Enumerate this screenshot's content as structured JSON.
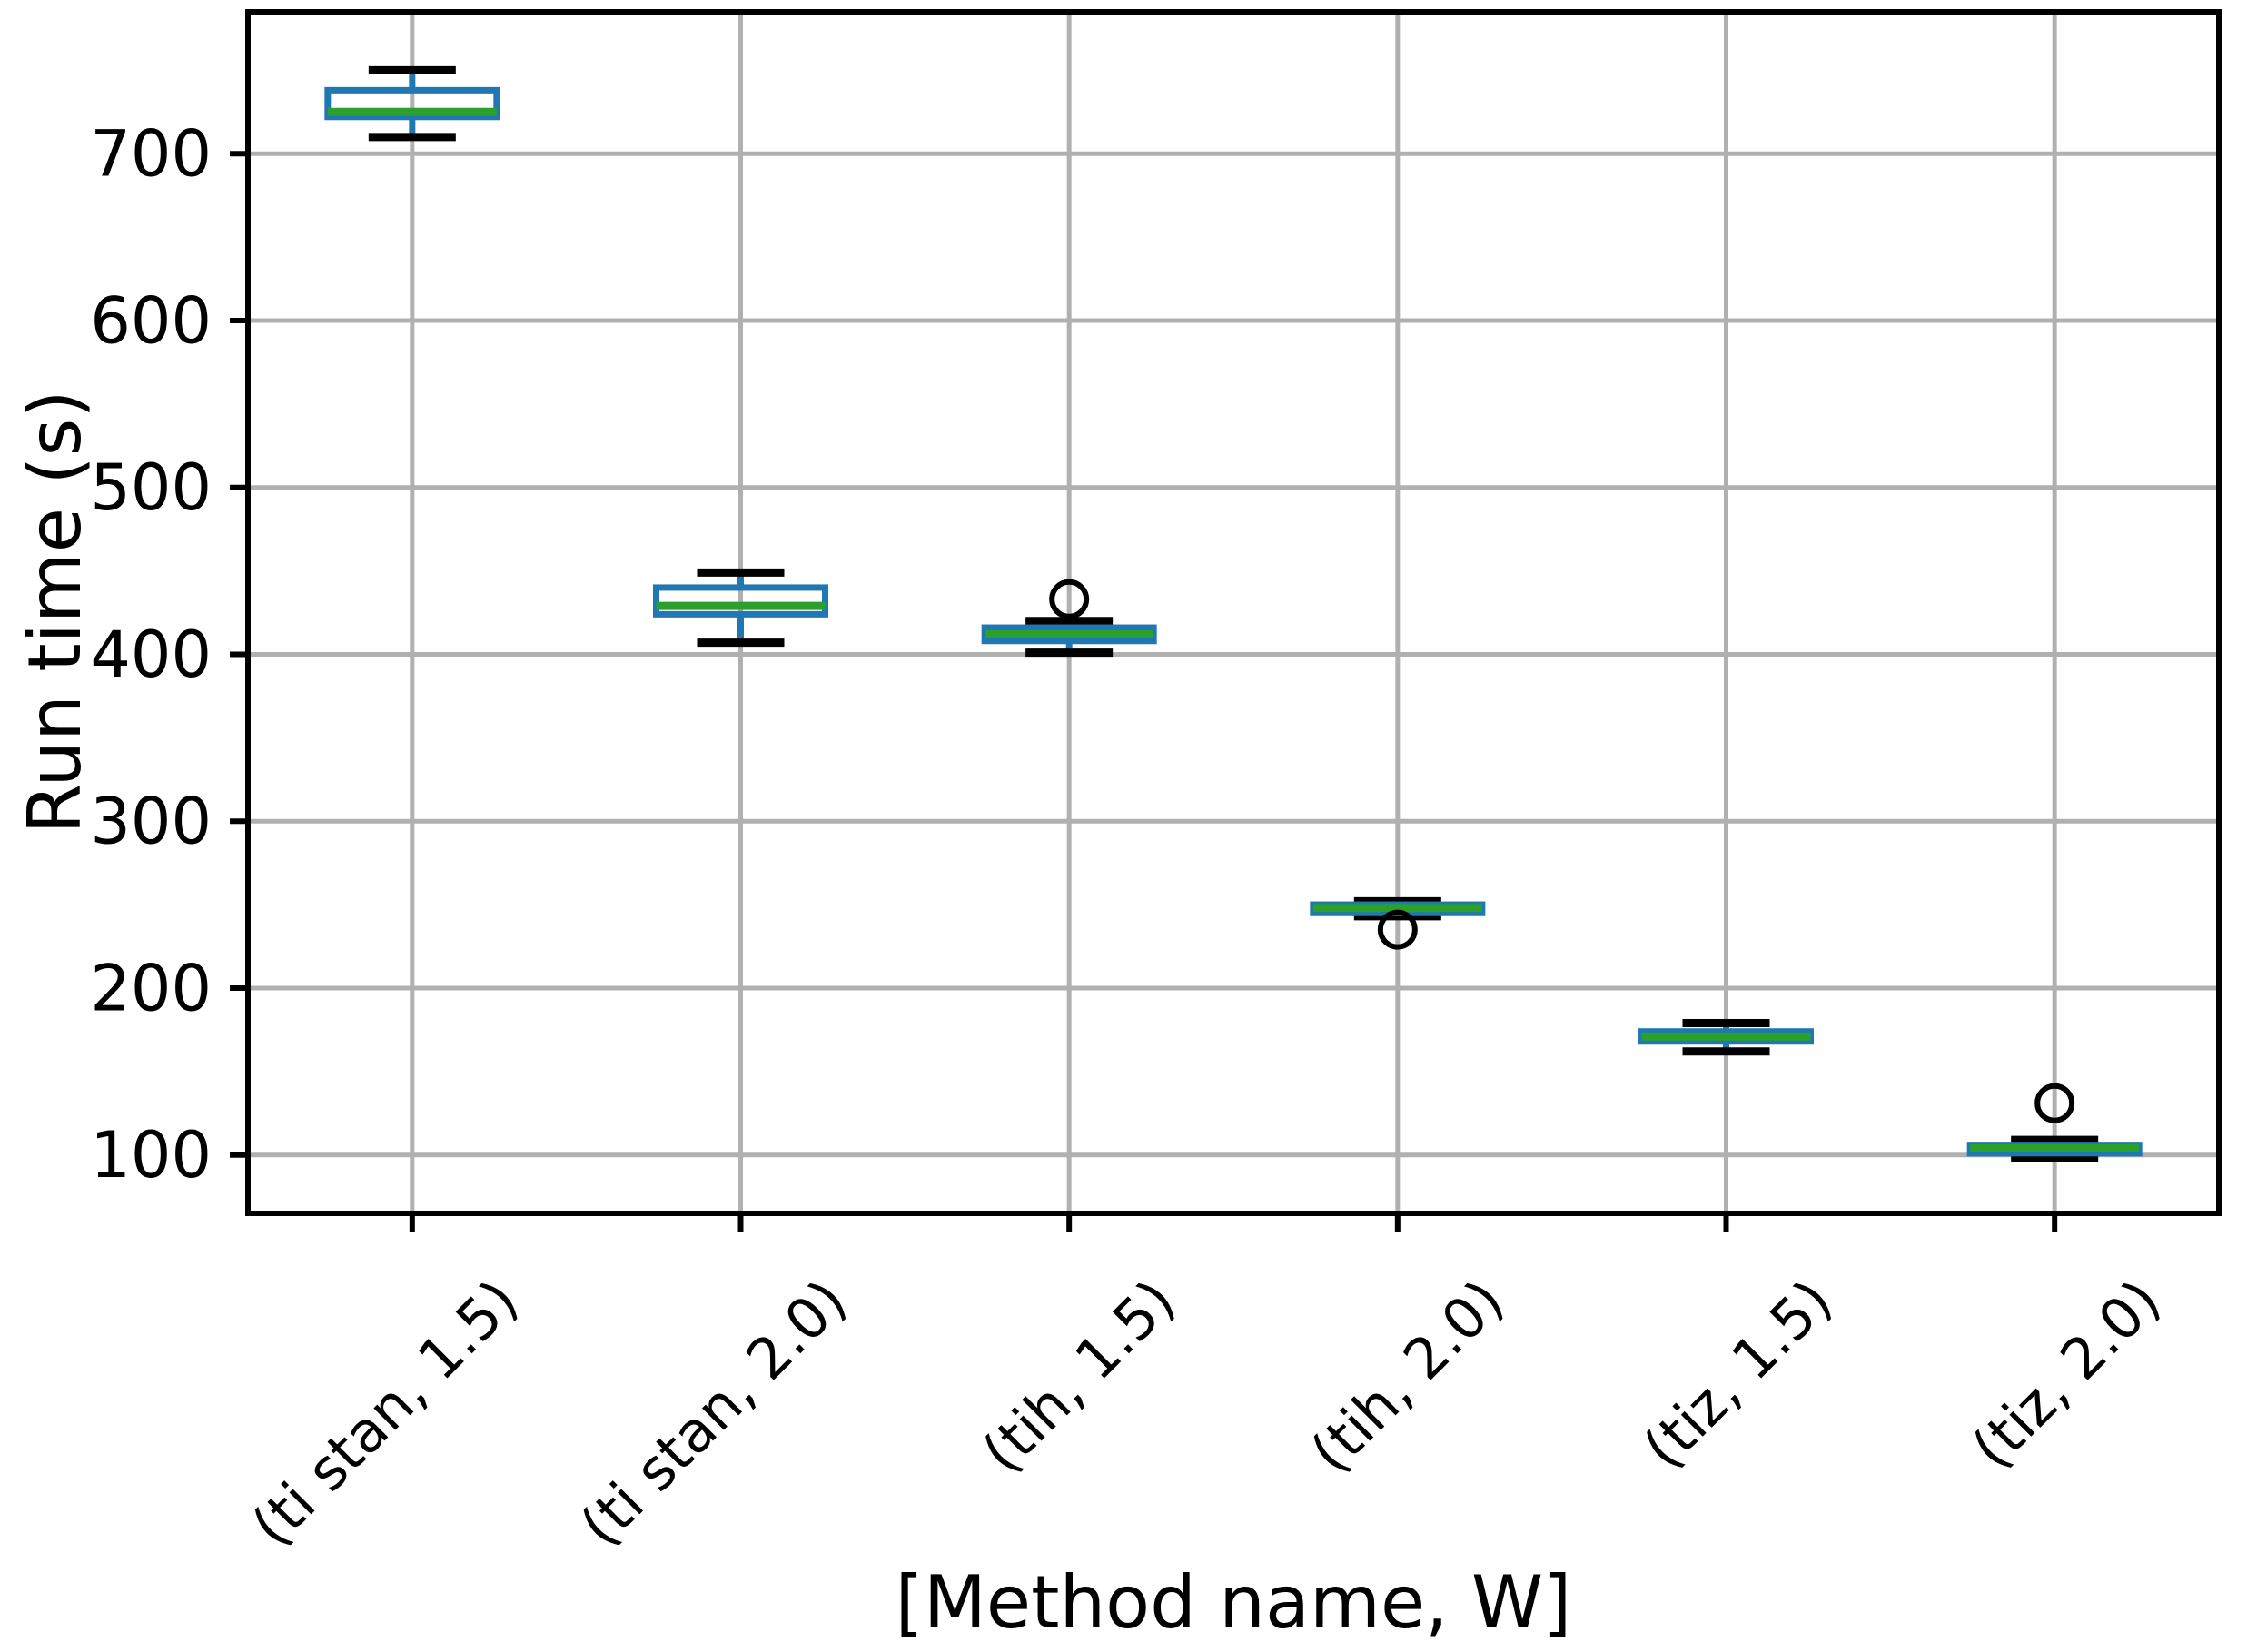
{
  "chart_data": {
    "type": "boxplot",
    "xlabel": "[Method name, W]",
    "ylabel": "Run time (s)",
    "categories": [
      "(ti stan, 1.5)",
      "(ti stan, 2.0)",
      "(tih, 1.5)",
      "(tih, 2.0)",
      "(tiz, 1.5)",
      "(tiz, 2.0)"
    ],
    "boxes": [
      {
        "label": "(ti stan, 1.5)",
        "whisker_low": 710,
        "q1": 722,
        "median": 725,
        "q3": 738,
        "whisker_high": 750,
        "outliers": []
      },
      {
        "label": "(ti stan, 2.0)",
        "whisker_low": 407,
        "q1": 424,
        "median": 429,
        "q3": 440,
        "whisker_high": 449,
        "outliers": []
      },
      {
        "label": "(tih, 1.5)",
        "whisker_low": 401,
        "q1": 408,
        "median": 412,
        "q3": 416,
        "whisker_high": 420,
        "outliers": [
          433
        ]
      },
      {
        "label": "(tih, 2.0)",
        "whisker_low": 243,
        "q1": 245,
        "median": 248,
        "q3": 250,
        "whisker_high": 252,
        "outliers": [
          235
        ]
      },
      {
        "label": "(tiz, 1.5)",
        "whisker_low": 162,
        "q1": 168,
        "median": 171,
        "q3": 174,
        "whisker_high": 179,
        "outliers": []
      },
      {
        "label": "(tiz, 2.0)",
        "whisker_low": 98,
        "q1": 101,
        "median": 104,
        "q3": 106,
        "whisker_high": 109,
        "outliers": [
          131
        ]
      }
    ],
    "yticks": [
      100,
      200,
      300,
      400,
      500,
      600,
      700
    ],
    "ylim": [
      65,
      785
    ],
    "grid": true,
    "x_tick_rotation_deg": 45,
    "legend": null,
    "colors": {
      "box": "#1f77b4",
      "median": "#2ca02c",
      "whisker": "#1f77b4",
      "cap": "#000000",
      "flier": "#000000",
      "grid": "#b0b0b0",
      "spine": "#000000",
      "text": "#000000",
      "background": "#ffffff"
    }
  }
}
